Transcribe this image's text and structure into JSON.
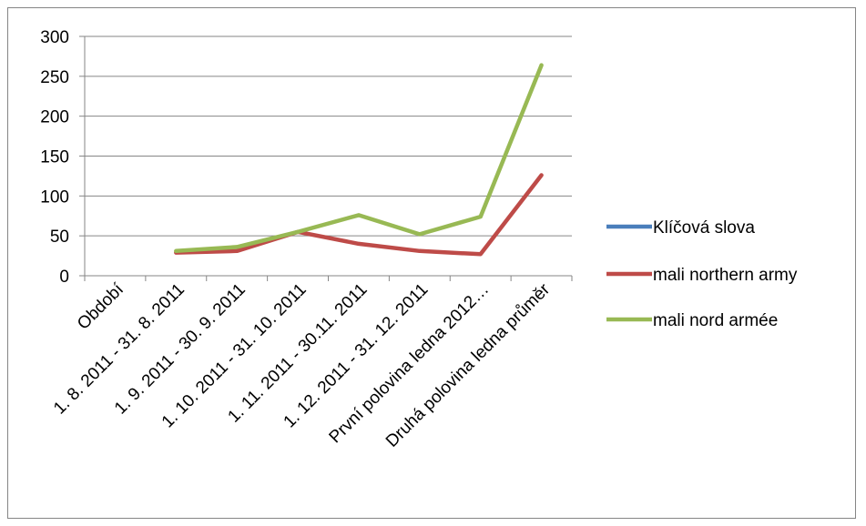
{
  "chart_data": {
    "type": "line",
    "categories": [
      "Období",
      "1. 8. 2011 - 31. 8. 2011",
      "1. 9. 2011 - 30. 9. 2011",
      "1. 10. 2011 - 31. 10. 2011",
      "1. 11. 2011 - 30.11. 2011",
      "1. 12. 2011 - 31. 12. 2011",
      "První polovina ledna 2012…",
      "Druhá polovina ledna průměr"
    ],
    "series": [
      {
        "name": "Klíčová slova",
        "color": "#4a7ebb",
        "values": [
          null,
          null,
          null,
          null,
          null,
          null,
          null,
          null
        ]
      },
      {
        "name": "mali northern army",
        "color": "#be4b48",
        "values": [
          null,
          29,
          31,
          55,
          40,
          31,
          27,
          126
        ]
      },
      {
        "name": "mali nord armée",
        "color": "#98b954",
        "values": [
          null,
          31,
          36,
          55,
          76,
          52,
          74,
          264
        ]
      }
    ],
    "ylim": [
      0,
      300
    ],
    "yticks": [
      "0",
      "50",
      "100",
      "150",
      "200",
      "250",
      "300"
    ],
    "grid": true,
    "legend_position": "right"
  }
}
